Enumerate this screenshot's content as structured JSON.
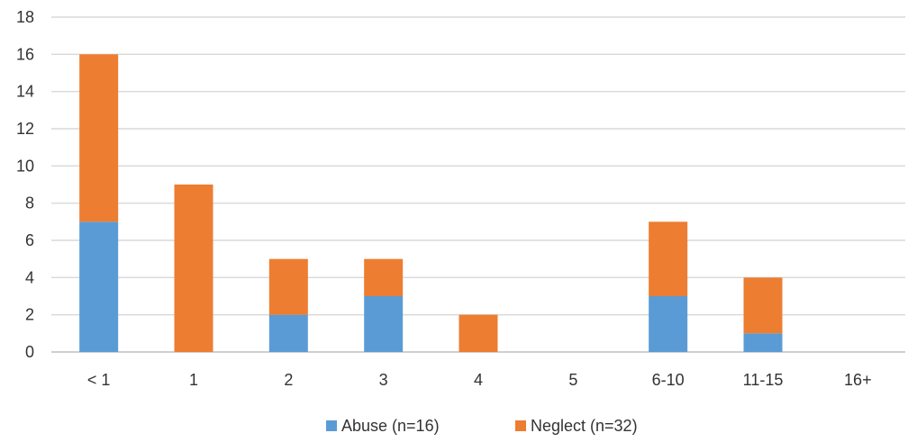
{
  "chart_data": {
    "type": "bar",
    "stacked": true,
    "categories": [
      "< 1",
      "1",
      "2",
      "3",
      "4",
      "5",
      "6-10",
      "11-15",
      "16+"
    ],
    "series": [
      {
        "name": "Abuse (n=16)",
        "color": "#5b9bd5",
        "values": [
          7,
          0,
          2,
          3,
          0,
          0,
          3,
          1,
          0
        ]
      },
      {
        "name": "Neglect (n=32)",
        "color": "#ed7d31",
        "values": [
          9,
          9,
          3,
          2,
          2,
          0,
          4,
          3,
          0
        ]
      }
    ],
    "ylim": [
      0,
      18
    ],
    "yticks": [
      0,
      2,
      4,
      6,
      8,
      10,
      12,
      14,
      16,
      18
    ],
    "grid": true,
    "legend": "bottom"
  }
}
